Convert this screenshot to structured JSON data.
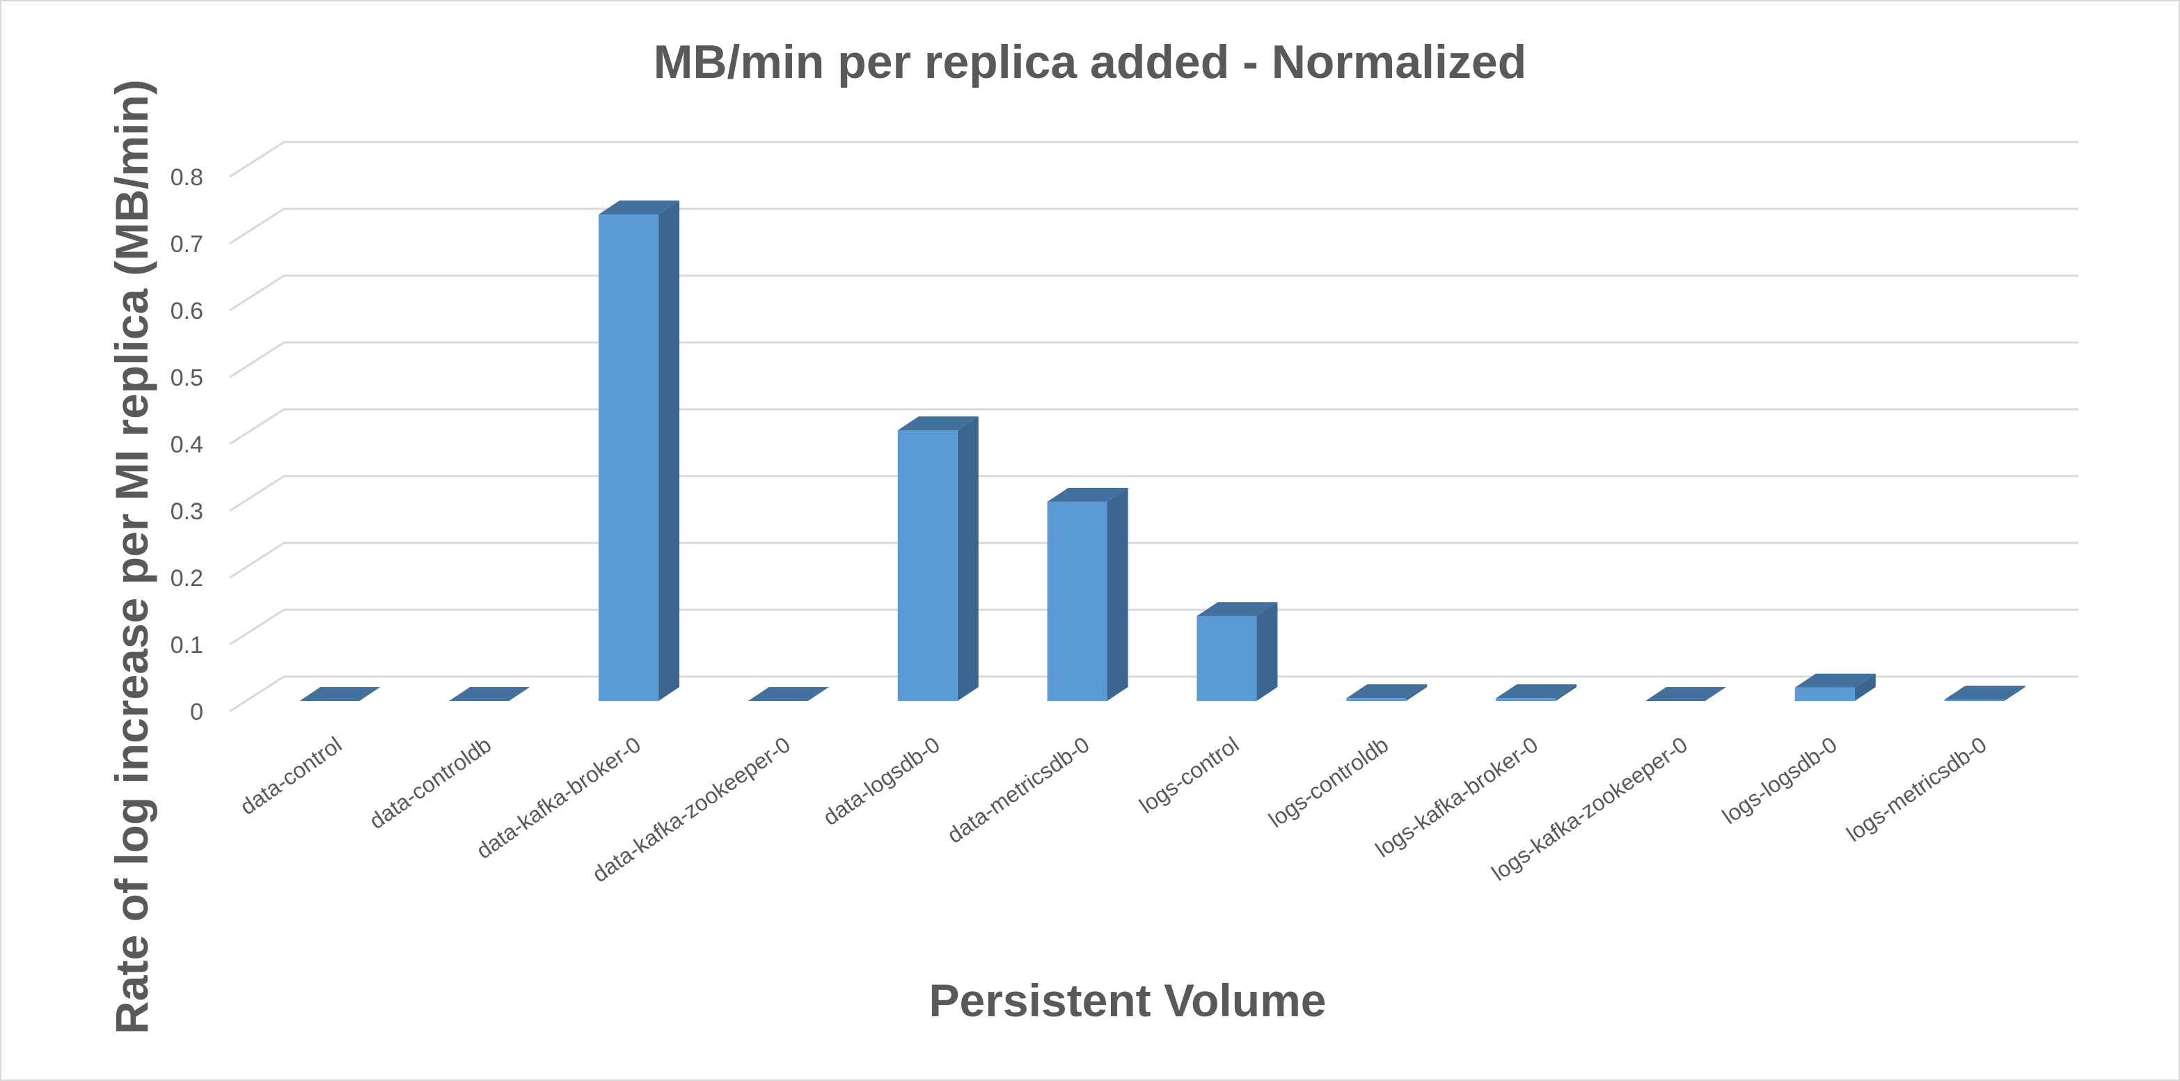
{
  "chart_data": {
    "type": "bar",
    "title": "MB/min per replica added - Normalized",
    "xlabel": "Persistent Volume",
    "ylabel": "Rate of log increase per MI replica (MB/min)",
    "ylim": [
      0,
      0.8
    ],
    "yticks": [
      "0",
      "0.1",
      "0.2",
      "0.3",
      "0.4",
      "0.5",
      "0.6",
      "0.7",
      "0.8"
    ],
    "grid": true,
    "legend": "none",
    "bar_color": "#5b9bd5",
    "bar_side_color": "#3c6590",
    "bar_top_color": "#41719c",
    "categories": [
      "data-control",
      "data-controldb",
      "data-kafka-broker-0",
      "data-kafka-zookeeper-0",
      "data-logsdb-0",
      "data-metricsdb-0",
      "logs-control",
      "logs-controldb",
      "logs-kafka-broker-0",
      "logs-kafka-zookeeper-0",
      "logs-logsdb-0",
      "logs-metricsdb-0"
    ],
    "values": [
      0,
      0,
      0.728,
      0,
      0.405,
      0.298,
      0.127,
      0.004,
      0.004,
      0,
      0.02,
      0.002
    ]
  }
}
